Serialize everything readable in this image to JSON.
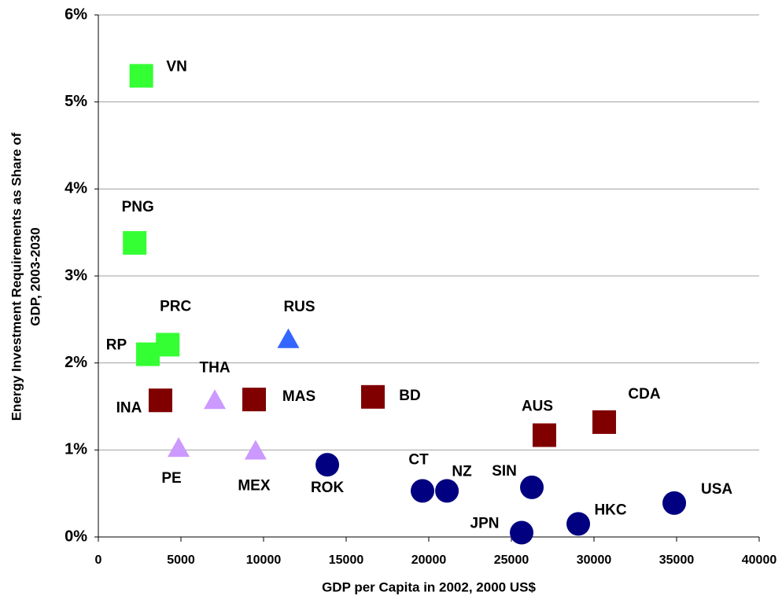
{
  "chart_data": {
    "type": "scatter",
    "xlabel": "GDP per Capita in 2002, 2000 US$",
    "ylabel": [
      "Energy Investment Requirements as Share of",
      "GDP, 2003-2030"
    ],
    "xlim": [
      0,
      40000
    ],
    "xticks": [
      0,
      5000,
      10000,
      15000,
      20000,
      25000,
      30000,
      35000,
      40000
    ],
    "ylim": [
      0,
      6
    ],
    "yticks": [
      {
        "value": 0,
        "label": "0%"
      },
      {
        "value": 1,
        "label": "1%"
      },
      {
        "value": 2,
        "label": "2%"
      },
      {
        "value": 3,
        "label": "3%"
      },
      {
        "value": 4,
        "label": "4%"
      },
      {
        "value": 5,
        "label": "5%"
      },
      {
        "value": 6,
        "label": "6%"
      }
    ],
    "grid": true,
    "points": [
      {
        "label": "VN",
        "x": 2600,
        "y": 5.3,
        "marker": "square",
        "color": "#33ff33"
      },
      {
        "label": "PNG",
        "x": 2200,
        "y": 3.38,
        "marker": "square",
        "color": "#33ff33"
      },
      {
        "label": "PRC",
        "x": 4200,
        "y": 2.21,
        "marker": "square",
        "color": "#33ff33"
      },
      {
        "label": "RP",
        "x": 3000,
        "y": 2.1,
        "marker": "square",
        "color": "#33ff33"
      },
      {
        "label": "RUS",
        "x": 11500,
        "y": 2.27,
        "marker": "triangle",
        "color": "#3366ff"
      },
      {
        "label": "THA",
        "x": 7050,
        "y": 1.57,
        "marker": "triangle",
        "color": "#cc99ff"
      },
      {
        "label": "INA",
        "x": 3760,
        "y": 1.57,
        "marker": "square",
        "color": "#800000"
      },
      {
        "label": "MAS",
        "x": 9430,
        "y": 1.58,
        "marker": "square",
        "color": "#800000"
      },
      {
        "label": "BD",
        "x": 16620,
        "y": 1.61,
        "marker": "square",
        "color": "#800000"
      },
      {
        "label": "PE",
        "x": 4860,
        "y": 1.02,
        "marker": "triangle",
        "color": "#cc99ff"
      },
      {
        "label": "MEX",
        "x": 9520,
        "y": 0.99,
        "marker": "triangle",
        "color": "#cc99ff"
      },
      {
        "label": "ROK",
        "x": 13860,
        "y": 0.83,
        "marker": "circle",
        "color": "#000080"
      },
      {
        "label": "CT",
        "x": 19620,
        "y": 0.53,
        "marker": "circle",
        "color": "#000080"
      },
      {
        "label": "NZ",
        "x": 21100,
        "y": 0.53,
        "marker": "circle",
        "color": "#000080"
      },
      {
        "label": "SIN",
        "x": 26240,
        "y": 0.57,
        "marker": "circle",
        "color": "#000080"
      },
      {
        "label": "JPN",
        "x": 25620,
        "y": 0.05,
        "marker": "circle",
        "color": "#000080"
      },
      {
        "label": "HKC",
        "x": 29050,
        "y": 0.15,
        "marker": "circle",
        "color": "#000080"
      },
      {
        "label": "USA",
        "x": 34860,
        "y": 0.39,
        "marker": "circle",
        "color": "#000080"
      },
      {
        "label": "AUS",
        "x": 27000,
        "y": 1.17,
        "marker": "square",
        "color": "#800000"
      },
      {
        "label": "CDA",
        "x": 30620,
        "y": 1.32,
        "marker": "square",
        "color": "#800000"
      }
    ]
  }
}
